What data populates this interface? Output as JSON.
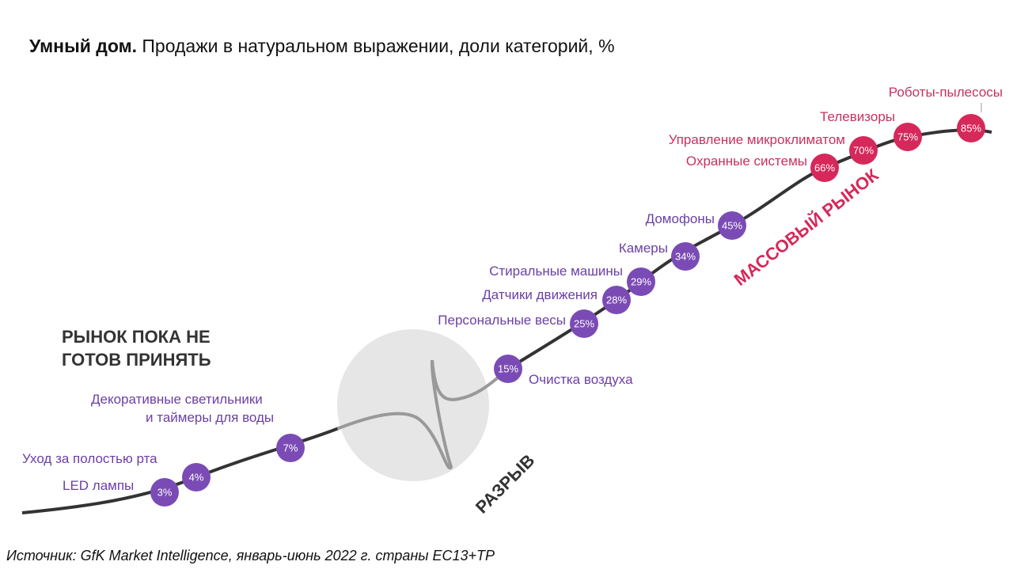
{
  "title": {
    "bold": "Умный дом.",
    "rest": " Продажи в натуральном выражении, доли категорий, %"
  },
  "source": "Источник: GfK Market Intelligence, январь-июнь 2022 г. страны ЕС13+ТР",
  "colors": {
    "early": "#7b4bb5",
    "mass": "#d6285a",
    "curve": "#333333",
    "gap": "#e6e6e6"
  },
  "zones": {
    "not_ready_line1": "РЫНОК ПОКА НЕ",
    "not_ready_line2": "ГОТОВ ПРИНЯТЬ",
    "gap": "РАЗРЫВ",
    "mass": "МАССОВЫЙ РЫНОК"
  },
  "chart_data": {
    "type": "scatter",
    "title": "Умный дом. Продажи в натуральном выражении, доли категорий, %",
    "categories": [
      "LED лампы",
      "Уход за полостью рта",
      "Декоративные светильники и таймеры для воды",
      "Очистка воздуха",
      "Персональные весы",
      "Датчики движения",
      "Стиральные машины",
      "Камеры",
      "Домофоны",
      "Охранные системы",
      "Управление микроклиматом",
      "Телевизоры",
      "Роботы-пылесосы"
    ],
    "values": [
      3,
      4,
      7,
      15,
      25,
      28,
      29,
      34,
      45,
      66,
      70,
      75,
      85
    ],
    "labels": [
      "3%",
      "4%",
      "7%",
      "15%",
      "25%",
      "28%",
      "29%",
      "34%",
      "45%",
      "66%",
      "70%",
      "75%",
      "85%"
    ],
    "label_lines": {
      "decor_1": "Декоративные светильники",
      "decor_2": "и таймеры для воды"
    },
    "segments": [
      "early",
      "early",
      "early",
      "early",
      "early",
      "early",
      "early",
      "early",
      "early",
      "mass",
      "mass",
      "mass",
      "mass"
    ]
  }
}
